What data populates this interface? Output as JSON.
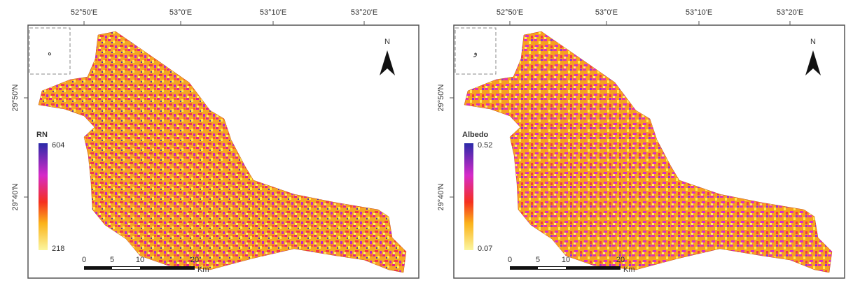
{
  "panels": [
    {
      "label": "ه",
      "lon_ticks": [
        "52°50'E",
        "53°0'E",
        "53°10'E",
        "53°20'E"
      ],
      "lat_ticks": [
        "29°50'N",
        "29°40'N"
      ],
      "north": "N",
      "legend": {
        "title": "RN",
        "max": "604",
        "min": "218"
      },
      "scale": {
        "ticks": [
          "0",
          "5",
          "10",
          "20"
        ],
        "unit": "Km"
      }
    },
    {
      "label": "و",
      "lon_ticks": [
        "52°50'E",
        "53°0'E",
        "53°10'E",
        "53°20'E"
      ],
      "lat_ticks": [
        "29°50'N",
        "29°40'N"
      ],
      "north": "N",
      "legend": {
        "title": "Albedo",
        "max": "0.52",
        "min": "0.07"
      },
      "scale": {
        "ticks": [
          "0",
          "5",
          "10",
          "20"
        ],
        "unit": "Km"
      }
    }
  ]
}
